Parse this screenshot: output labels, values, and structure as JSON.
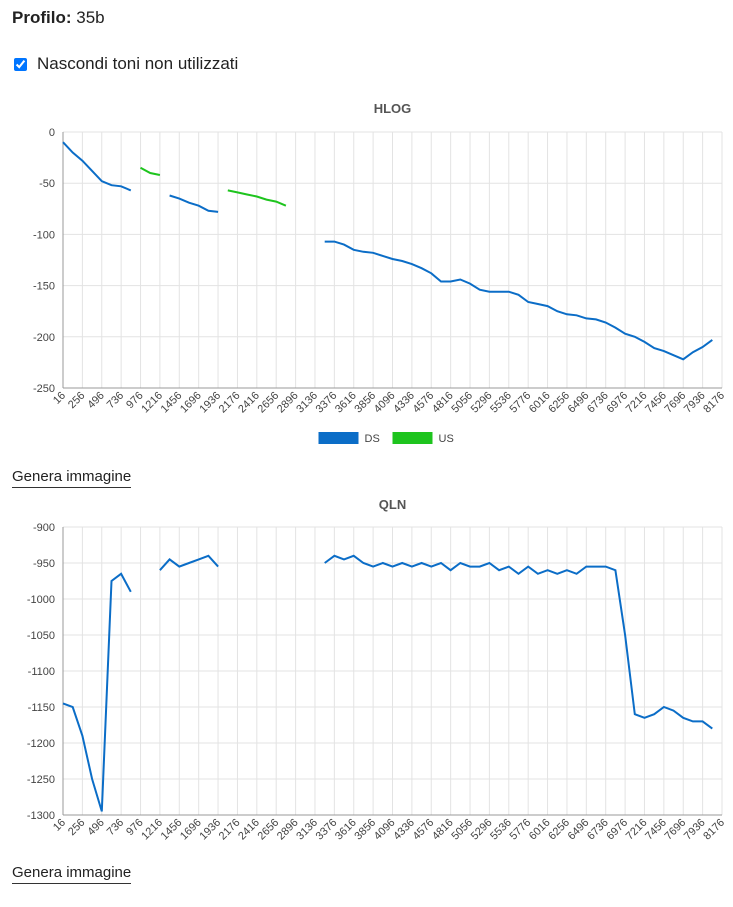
{
  "header": {
    "profile_label": "Profilo:",
    "profile_value": "35b"
  },
  "options": {
    "hide_unused": "Nascondi toni non utilizzati"
  },
  "buttons": [
    "Genera immagine",
    "Genera immagine"
  ],
  "chart_data": [
    {
      "type": "line",
      "title": "HLOG",
      "x": [
        16,
        136,
        256,
        376,
        496,
        616,
        736,
        856,
        976,
        1096,
        1216,
        1336,
        1456,
        1576,
        1696,
        1816,
        1936,
        2056,
        2176,
        2296,
        2416,
        2536,
        2656,
        2776,
        2896,
        3016,
        3136,
        3256,
        3376,
        3496,
        3616,
        3736,
        3856,
        3976,
        4096,
        4216,
        4336,
        4456,
        4576,
        4696,
        4816,
        4936,
        5056,
        5176,
        5296,
        5416,
        5536,
        5656,
        5776,
        5896,
        6016,
        6136,
        6256,
        6376,
        6496,
        6616,
        6736,
        6856,
        6976,
        7096,
        7216,
        7336,
        7456,
        7576,
        7696,
        7816,
        7936,
        8056,
        8176
      ],
      "series": [
        {
          "name": "DS",
          "color": "#0b6dc7",
          "values": [
            -10,
            -20,
            -28,
            -38,
            -48,
            -52,
            -53,
            -57,
            null,
            null,
            null,
            -62,
            -65,
            -69,
            -72,
            -77,
            -78,
            null,
            null,
            null,
            null,
            null,
            null,
            null,
            null,
            null,
            null,
            -107,
            -107,
            -110,
            -115,
            -117,
            -118,
            -121,
            -124,
            -126,
            -129,
            -133,
            -138,
            -146,
            -146,
            -144,
            -148,
            -154,
            -156,
            -156,
            -156,
            -159,
            -166,
            -168,
            -170,
            -175,
            -178,
            -179,
            -182,
            -183,
            -186,
            -191,
            -197,
            -200,
            -205,
            -211,
            -214,
            -218,
            -222,
            -215,
            -210,
            -203,
            null
          ]
        },
        {
          "name": "US",
          "color": "#1ec41e",
          "values": [
            null,
            null,
            null,
            null,
            null,
            null,
            null,
            null,
            -35,
            -40,
            -42,
            null,
            null,
            null,
            null,
            null,
            null,
            -57,
            -59,
            -61,
            -63,
            -66,
            -68,
            -72,
            null,
            null,
            null,
            null,
            null,
            null,
            null,
            null,
            null,
            null,
            null,
            null,
            null,
            null,
            null,
            null,
            null,
            null,
            null,
            null,
            null,
            null,
            null,
            null,
            null,
            null,
            null,
            null,
            null,
            null,
            null,
            null,
            null,
            null,
            null,
            null,
            null,
            null,
            null,
            null,
            null,
            null,
            null,
            null,
            null
          ]
        }
      ],
      "xlim": [
        16,
        8176
      ],
      "xticks": [
        16,
        256,
        496,
        736,
        976,
        1216,
        1456,
        1696,
        1936,
        2176,
        2416,
        2656,
        2896,
        3136,
        3376,
        3616,
        3856,
        4096,
        4336,
        4576,
        4816,
        5056,
        5296,
        5536,
        5776,
        6016,
        6256,
        6496,
        6736,
        6976,
        7216,
        7456,
        7696,
        7936,
        8176
      ],
      "ylim": [
        -250,
        0
      ],
      "yticks": [
        0,
        -50,
        -100,
        -150,
        -200,
        -250
      ],
      "grid": true,
      "legend": "bottom"
    },
    {
      "type": "line",
      "title": "QLN",
      "x": [
        16,
        136,
        256,
        376,
        496,
        616,
        736,
        856,
        976,
        1096,
        1216,
        1336,
        1456,
        1576,
        1696,
        1816,
        1936,
        2056,
        2176,
        2296,
        2416,
        2536,
        2656,
        2776,
        2896,
        3016,
        3136,
        3256,
        3376,
        3496,
        3616,
        3736,
        3856,
        3976,
        4096,
        4216,
        4336,
        4456,
        4576,
        4696,
        4816,
        4936,
        5056,
        5176,
        5296,
        5416,
        5536,
        5656,
        5776,
        5896,
        6016,
        6136,
        6256,
        6376,
        6496,
        6616,
        6736,
        6856,
        6976,
        7096,
        7216,
        7336,
        7456,
        7576,
        7696,
        7816,
        7936,
        8056,
        8176
      ],
      "color": "#0b6dc7",
      "values": [
        -1145,
        -1150,
        -1190,
        -1250,
        -1295,
        -975,
        -965,
        -990,
        null,
        null,
        -960,
        -945,
        -955,
        -950,
        -945,
        -940,
        -955,
        null,
        null,
        null,
        null,
        null,
        null,
        null,
        null,
        null,
        null,
        -950,
        -940,
        -945,
        -940,
        -950,
        -955,
        -950,
        -955,
        -950,
        -955,
        -950,
        -955,
        -950,
        -960,
        -950,
        -955,
        -955,
        -950,
        -960,
        -955,
        -965,
        -955,
        -965,
        -960,
        -965,
        -960,
        -965,
        -955,
        -955,
        -955,
        -960,
        -1050,
        -1160,
        -1165,
        -1160,
        -1150,
        -1155,
        -1165,
        -1170,
        -1170,
        -1180,
        null
      ],
      "xlim": [
        16,
        8176
      ],
      "xticks": [
        16,
        256,
        496,
        736,
        976,
        1216,
        1456,
        1696,
        1936,
        2176,
        2416,
        2656,
        2896,
        3136,
        3376,
        3616,
        3856,
        4096,
        4336,
        4576,
        4816,
        5056,
        5296,
        5536,
        5776,
        6016,
        6256,
        6496,
        6736,
        6976,
        7216,
        7456,
        7696,
        7936,
        8176
      ],
      "ylim": [
        -1300,
        -900
      ],
      "yticks": [
        -900,
        -950,
        -1000,
        -1050,
        -1100,
        -1150,
        -1200,
        -1250,
        -1300
      ],
      "grid": true
    }
  ]
}
